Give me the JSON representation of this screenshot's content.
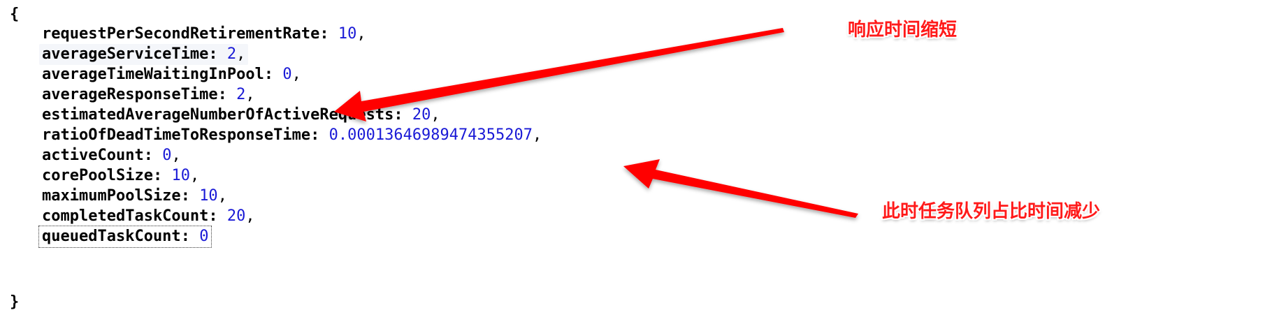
{
  "json": {
    "open_brace": "{",
    "close_brace": "}",
    "entries": [
      {
        "key": "requestPerSecondRetirementRate",
        "value": "10",
        "comma": ","
      },
      {
        "key": "averageServiceTime",
        "value": "2",
        "comma": ","
      },
      {
        "key": "averageTimeWaitingInPool",
        "value": "0",
        "comma": ","
      },
      {
        "key": "averageResponseTime",
        "value": "2",
        "comma": ","
      },
      {
        "key": "estimatedAverageNumberOfActiveRequests",
        "value": "20",
        "comma": ","
      },
      {
        "key": "ratioOfDeadTimeToResponseTime",
        "value": "0.00013646989474355207",
        "comma": ","
      },
      {
        "key": "activeCount",
        "value": "0",
        "comma": ","
      },
      {
        "key": "corePoolSize",
        "value": "10",
        "comma": ","
      },
      {
        "key": "maximumPoolSize",
        "value": "10",
        "comma": ","
      },
      {
        "key": "completedTaskCount",
        "value": "20",
        "comma": ","
      },
      {
        "key": "queuedTaskCount",
        "value": "0",
        "comma": ""
      }
    ]
  },
  "annotations": {
    "response_time": "响应时间缩短",
    "queue_time": "此时任务队列占比时间减少"
  },
  "colors": {
    "key": "#000000",
    "value": "#1a1ad6",
    "annotation": "#ff1a1a",
    "arrow": "#ff0000"
  }
}
